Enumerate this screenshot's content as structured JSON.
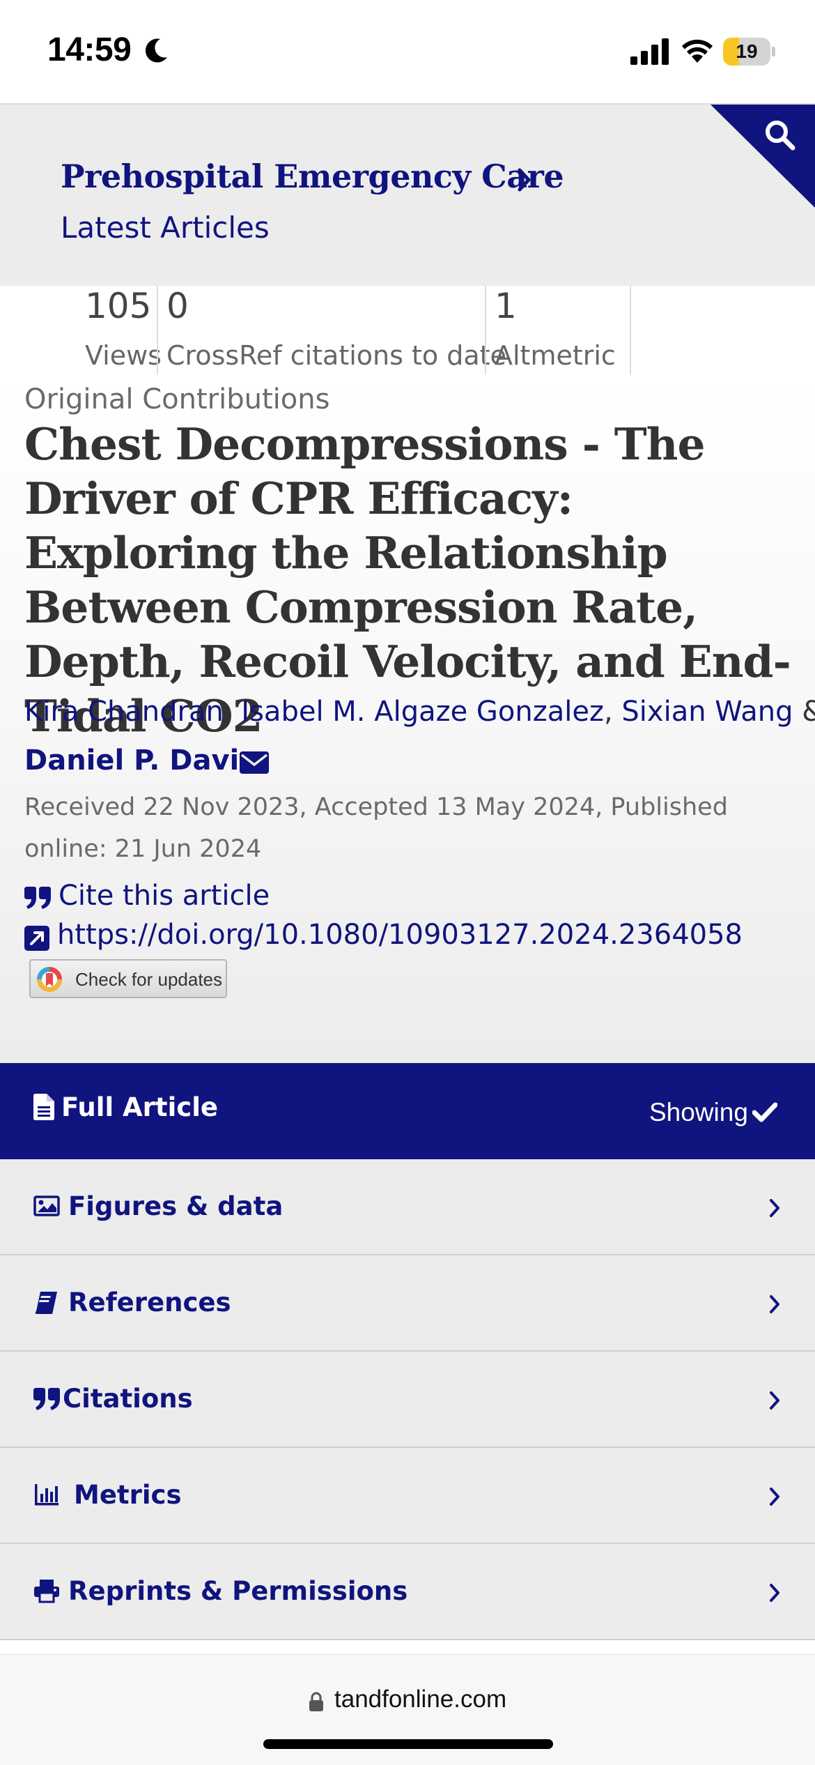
{
  "status_bar": {
    "time": "14:59",
    "battery_level": "19",
    "battery_fraction": 0.19
  },
  "header": {
    "journal": "Prehospital Emergency Care",
    "section": "Latest Articles"
  },
  "metrics": [
    {
      "value": "105",
      "label": "Views"
    },
    {
      "value": "0",
      "label": "CrossRef citations to date"
    },
    {
      "value": "1",
      "label": "Altmetric"
    }
  ],
  "article": {
    "type": "Original Contributions",
    "title": "Chest Decompressions - The Driver of CPR Efficacy: Exploring the Relationship Between Compression Rate, Depth, Recoil Velocity, and End-Tidal CO2",
    "authors": [
      "Kira Chandran",
      "Isabel M. Algaze Gonzalez",
      "Sixian Wang"
    ],
    "author_separator": ",",
    "author_conjunction": "&",
    "corresponding_author": "Daniel P. Davis",
    "dates": "Received 22 Nov 2023, Accepted 13 May 2024, Published online: 21 Jun 2024",
    "cite_label": "Cite this article",
    "doi": "https://doi.org/10.1080/10903127.2024.2364058",
    "check_updates": "Check for updates"
  },
  "full_article": {
    "label": "Full Article",
    "status": "Showing"
  },
  "nav": [
    {
      "label": "Figures & data",
      "icon": "image-icon"
    },
    {
      "label": "References",
      "icon": "book-icon"
    },
    {
      "label": "Citations",
      "icon": "quote-icon"
    },
    {
      "label": "Metrics",
      "icon": "bar-chart-icon"
    },
    {
      "label": "Reprints & Permissions",
      "icon": "printer-icon"
    }
  ],
  "url_bar": {
    "domain": "tandfonline.com"
  },
  "colors": {
    "brand_navy": "#10147e",
    "battery_yellow": "#f7c624"
  }
}
